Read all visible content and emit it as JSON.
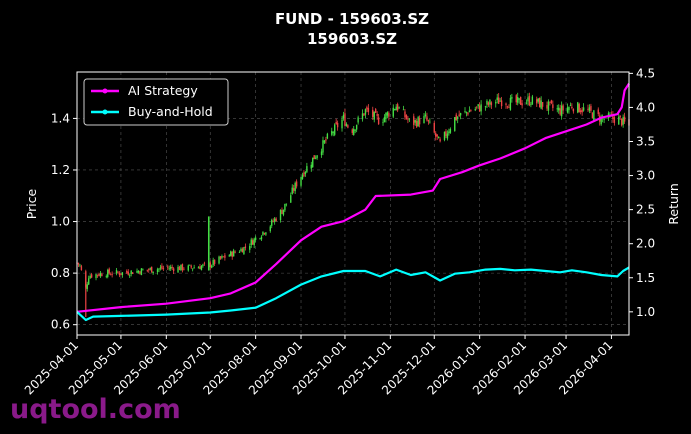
{
  "chart_data": {
    "type": "candlestick+line",
    "title": "FUND - 159603.SZ",
    "subtitle": "159603.SZ",
    "ylabel_left": "Price",
    "ylabel_right": "Return",
    "xlim": [
      "2025-04-01",
      "2026-04-13"
    ],
    "ylim_left": [
      0.56,
      1.58
    ],
    "ylim_right": [
      0.66,
      4.52
    ],
    "yticks_left": [
      "0.6",
      "0.8",
      "1.0",
      "1.2",
      "1.4"
    ],
    "yticks_right": [
      "1.0",
      "1.5",
      "2.0",
      "2.5",
      "3.0",
      "3.5",
      "4.0",
      "4.5"
    ],
    "xticks": [
      "2025-04-01",
      "2025-05-01",
      "2025-06-01",
      "2025-07-01",
      "2025-08-01",
      "2025-09-01",
      "2025-10-01",
      "2025-11-01",
      "2025-12-01",
      "2026-01-01",
      "2026-02-01",
      "2026-03-01",
      "2026-04-01"
    ],
    "grid": true,
    "legend_position": "top-left",
    "colors": {
      "up": "#44dd44",
      "down": "#ee4444",
      "ai": "#ff00ff",
      "bh": "#00ffff",
      "background": "#000000"
    },
    "price_path": [
      [
        "2025-04-01",
        0.84
      ],
      [
        "2025-04-03",
        0.83
      ],
      [
        "2025-04-07",
        0.74
      ],
      [
        "2025-04-09",
        0.79
      ],
      [
        "2025-04-20",
        0.8
      ],
      [
        "2025-05-01",
        0.8
      ],
      [
        "2025-05-15",
        0.81
      ],
      [
        "2025-06-01",
        0.82
      ],
      [
        "2025-06-15",
        0.82
      ],
      [
        "2025-06-30",
        0.83
      ],
      [
        "2025-07-10",
        0.86
      ],
      [
        "2025-07-25",
        0.9
      ],
      [
        "2025-08-10",
        0.98
      ],
      [
        "2025-08-20",
        1.05
      ],
      [
        "2025-08-31",
        1.17
      ],
      [
        "2025-09-10",
        1.25
      ],
      [
        "2025-09-20",
        1.33
      ],
      [
        "2025-09-30",
        1.4
      ],
      [
        "2025-10-05",
        1.35
      ],
      [
        "2025-10-15",
        1.43
      ],
      [
        "2025-10-25",
        1.39
      ],
      [
        "2025-11-05",
        1.45
      ],
      [
        "2025-11-15",
        1.38
      ],
      [
        "2025-11-25",
        1.4
      ],
      [
        "2025-12-05",
        1.3
      ],
      [
        "2025-12-15",
        1.4
      ],
      [
        "2025-12-25",
        1.43
      ],
      [
        "2026-01-05",
        1.45
      ],
      [
        "2026-01-15",
        1.47
      ],
      [
        "2026-01-25",
        1.46
      ],
      [
        "2026-02-05",
        1.47
      ],
      [
        "2026-02-15",
        1.45
      ],
      [
        "2026-02-25",
        1.43
      ],
      [
        "2026-03-05",
        1.45
      ],
      [
        "2026-03-15",
        1.43
      ],
      [
        "2026-03-25",
        1.4
      ],
      [
        "2026-04-05",
        1.4
      ],
      [
        "2026-04-13",
        1.37
      ]
    ],
    "series": [
      {
        "name": "AI Strategy",
        "points": [
          [
            "2025-04-01",
            1.0
          ],
          [
            "2025-05-01",
            1.07
          ],
          [
            "2025-06-01",
            1.12
          ],
          [
            "2025-07-01",
            1.2
          ],
          [
            "2025-07-15",
            1.27
          ],
          [
            "2025-08-01",
            1.43
          ],
          [
            "2025-08-15",
            1.7
          ],
          [
            "2025-09-01",
            2.05
          ],
          [
            "2025-09-15",
            2.25
          ],
          [
            "2025-09-30",
            2.33
          ],
          [
            "2025-10-15",
            2.5
          ],
          [
            "2025-10-22",
            2.7
          ],
          [
            "2025-11-15",
            2.72
          ],
          [
            "2025-11-30",
            2.78
          ],
          [
            "2025-12-05",
            2.95
          ],
          [
            "2025-12-20",
            3.05
          ],
          [
            "2026-01-01",
            3.15
          ],
          [
            "2026-01-15",
            3.25
          ],
          [
            "2026-02-01",
            3.4
          ],
          [
            "2026-02-15",
            3.55
          ],
          [
            "2026-03-01",
            3.65
          ],
          [
            "2026-03-15",
            3.75
          ],
          [
            "2026-03-25",
            3.85
          ],
          [
            "2026-04-05",
            3.9
          ],
          [
            "2026-04-08",
            4.0
          ],
          [
            "2026-04-10",
            4.25
          ],
          [
            "2026-04-13",
            4.35
          ]
        ]
      },
      {
        "name": "Buy-and-Hold",
        "points": [
          [
            "2025-04-01",
            1.0
          ],
          [
            "2025-04-07",
            0.88
          ],
          [
            "2025-04-12",
            0.93
          ],
          [
            "2025-05-01",
            0.94
          ],
          [
            "2025-06-01",
            0.96
          ],
          [
            "2025-07-01",
            0.99
          ],
          [
            "2025-07-15",
            1.02
          ],
          [
            "2025-08-01",
            1.06
          ],
          [
            "2025-08-15",
            1.2
          ],
          [
            "2025-09-01",
            1.4
          ],
          [
            "2025-09-15",
            1.52
          ],
          [
            "2025-09-30",
            1.6
          ],
          [
            "2025-10-15",
            1.6
          ],
          [
            "2025-10-25",
            1.52
          ],
          [
            "2025-11-05",
            1.62
          ],
          [
            "2025-11-15",
            1.54
          ],
          [
            "2025-11-25",
            1.58
          ],
          [
            "2025-12-05",
            1.46
          ],
          [
            "2025-12-15",
            1.56
          ],
          [
            "2025-12-25",
            1.58
          ],
          [
            "2026-01-05",
            1.62
          ],
          [
            "2026-01-15",
            1.63
          ],
          [
            "2026-01-25",
            1.61
          ],
          [
            "2026-02-05",
            1.62
          ],
          [
            "2026-02-15",
            1.6
          ],
          [
            "2026-02-25",
            1.58
          ],
          [
            "2026-03-05",
            1.61
          ],
          [
            "2026-03-15",
            1.58
          ],
          [
            "2026-03-25",
            1.54
          ],
          [
            "2026-04-05",
            1.52
          ],
          [
            "2026-04-09",
            1.6
          ],
          [
            "2026-04-13",
            1.65
          ]
        ]
      }
    ]
  },
  "watermark": "uqtool.com"
}
